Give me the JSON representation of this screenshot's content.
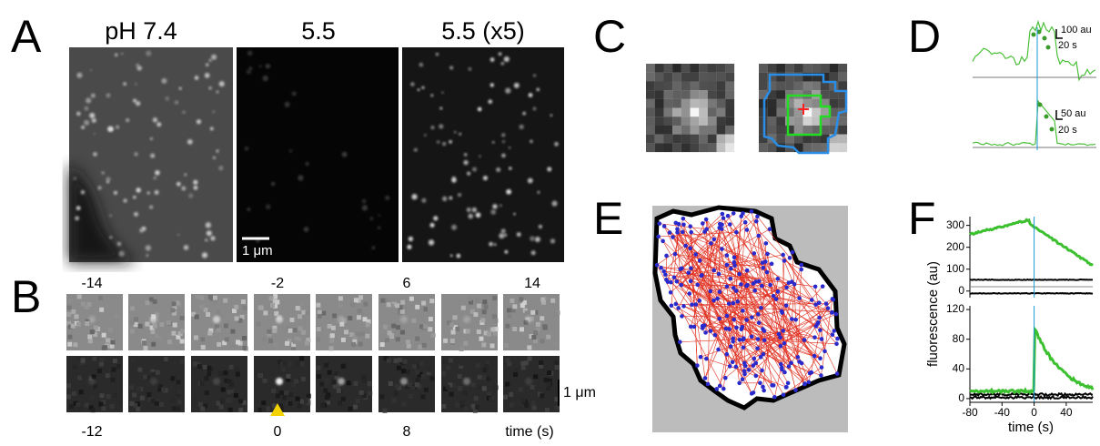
{
  "panels": {
    "A": {
      "letter": "A",
      "labels": [
        "pH 7.4",
        "5.5",
        "5.5 (x5)"
      ],
      "scale_bar": "1 μm"
    },
    "B": {
      "letter": "B",
      "top_times": [
        "-14",
        "-2",
        "6",
        "14"
      ],
      "bottom_times": [
        "-12",
        "0",
        "8"
      ],
      "time_label": "time (s)",
      "scale_bar": "1 μm"
    },
    "C": {
      "letter": "C"
    },
    "D": {
      "letter": "D",
      "scale_top": [
        "100 au",
        "20 s"
      ],
      "scale_bottom": [
        "50 au",
        "20 s"
      ]
    },
    "E": {
      "letter": "E"
    },
    "F": {
      "letter": "F",
      "y_label": "fluorescence (au)",
      "x_label": "time (s)",
      "xlim": [
        -80,
        73
      ],
      "xticks": [
        -80,
        -40,
        0,
        40
      ],
      "top": {
        "ylim": [
          -30,
          340
        ],
        "yticks": [
          0,
          100,
          200,
          300
        ]
      },
      "bottom": {
        "ylim": [
          -5,
          125
        ],
        "yticks": [
          0,
          40,
          80,
          120
        ]
      }
    }
  }
}
